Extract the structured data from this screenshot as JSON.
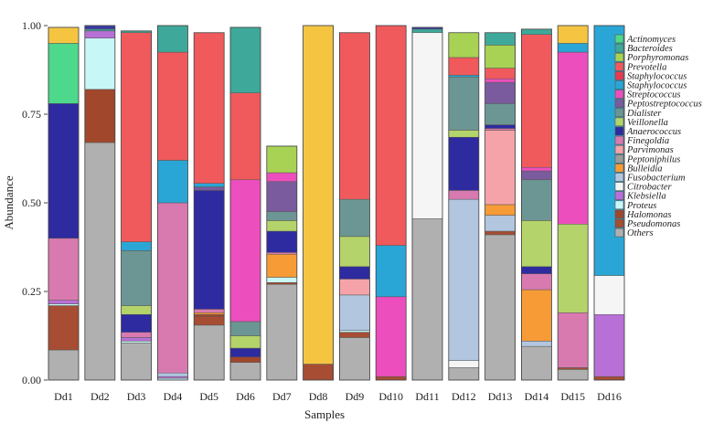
{
  "chart_data": {
    "type": "bar",
    "stacked": true,
    "xlabel": "Samples",
    "ylabel": "Abundance",
    "ylim": [
      0,
      1
    ],
    "yticks": [
      "0.00",
      "0.25",
      "0.50",
      "0.75",
      "1.00"
    ],
    "legend_position": "right",
    "categories": [
      "Dd1",
      "Dd2",
      "Dd3",
      "Dd4",
      "Dd5",
      "Dd6",
      "Dd7",
      "Dd8",
      "Dd9",
      "Dd10",
      "Dd11",
      "Dd12",
      "Dd13",
      "Dd14",
      "Dd15",
      "Dd16"
    ],
    "series": [
      {
        "name": "Others",
        "color": "#b0b0b0",
        "values": [
          0.085,
          0.67,
          0.105,
          0.0,
          0.155,
          0.05,
          0.27,
          0.0,
          0.12,
          0.0,
          0.455,
          0.035,
          0.41,
          0.095,
          0.03,
          0.0
        ]
      },
      {
        "name": "Pseudomonas",
        "color": "#a64d33",
        "values": [
          0.125,
          0.0,
          0.0,
          0.0,
          0.025,
          0.0,
          0.0,
          0.045,
          0.015,
          0.01,
          0.0,
          0.0,
          0.01,
          0.0,
          0.005,
          0.01
        ]
      },
      {
        "name": "Halomonas",
        "color": "#a0472c",
        "values": [
          0.0,
          0.15,
          0.0,
          0.0,
          0.005,
          0.015,
          0.005,
          0.0,
          0.0,
          0.0,
          0.0,
          0.0,
          0.0,
          0.0,
          0.0,
          0.0
        ]
      },
      {
        "name": "Proteus",
        "color": "#c8f7f7",
        "values": [
          0.005,
          0.145,
          0.005,
          0.005,
          0.0,
          0.0,
          0.015,
          0.0,
          0.005,
          0.0,
          0.0,
          0.0,
          0.0,
          0.0,
          0.0,
          0.0
        ]
      },
      {
        "name": "Klebsiella",
        "color": "#b86fd6",
        "values": [
          0.01,
          0.02,
          0.01,
          0.005,
          0.0,
          0.0,
          0.0,
          0.0,
          0.0,
          0.0,
          0.0,
          0.0,
          0.0,
          0.0,
          0.0,
          0.175
        ]
      },
      {
        "name": "Citrobacter",
        "color": "#f5f5f5",
        "values": [
          0.0,
          0.0,
          0.0,
          0.0,
          0.0,
          0.0,
          0.0,
          0.0,
          0.0,
          0.0,
          0.525,
          0.02,
          0.0,
          0.0,
          0.0,
          0.11
        ]
      },
      {
        "name": "Fusobacterium",
        "color": "#b3c6e0",
        "values": [
          0.0,
          0.0,
          0.0,
          0.01,
          0.0,
          0.0,
          0.0,
          0.0,
          0.1,
          0.0,
          0.0,
          0.455,
          0.045,
          0.015,
          0.0,
          0.0
        ]
      },
      {
        "name": "Bulleidia",
        "color": "#f79b37",
        "values": [
          0.0,
          0.0,
          0.0,
          0.0,
          0.005,
          0.0,
          0.065,
          0.0,
          0.0,
          0.0,
          0.0,
          0.0,
          0.03,
          0.145,
          0.0,
          0.0
        ]
      },
      {
        "name": "Peptoniphilus",
        "color": "#9b9b9b",
        "values": [
          0.0,
          0.0,
          0.0,
          0.0,
          0.0,
          0.0,
          0.0,
          0.0,
          0.0,
          0.0,
          0.0,
          0.0,
          0.0,
          0.0,
          0.0,
          0.0
        ]
      },
      {
        "name": "Parvimonas",
        "color": "#f5a3a8",
        "values": [
          0.0,
          0.0,
          0.0,
          0.0,
          0.0,
          0.0,
          0.0,
          0.0,
          0.045,
          0.0,
          0.0,
          0.0,
          0.21,
          0.0,
          0.0,
          0.0
        ]
      },
      {
        "name": "Finegoldia",
        "color": "#d87ab0",
        "values": [
          0.175,
          0.0,
          0.015,
          0.48,
          0.01,
          0.0,
          0.005,
          0.0,
          0.0,
          0.0,
          0.0,
          0.025,
          0.005,
          0.045,
          0.155,
          0.0
        ]
      },
      {
        "name": "Anaerococcus",
        "color": "#2e2a9f",
        "values": [
          0.38,
          0.0,
          0.05,
          0.0,
          0.335,
          0.025,
          0.06,
          0.0,
          0.035,
          0.0,
          0.0,
          0.15,
          0.01,
          0.02,
          0.0,
          0.0
        ]
      },
      {
        "name": "Veillonella",
        "color": "#b4d36b",
        "values": [
          0.0,
          0.0,
          0.025,
          0.0,
          0.0,
          0.035,
          0.03,
          0.0,
          0.085,
          0.0,
          0.0,
          0.02,
          0.0,
          0.13,
          0.25,
          0.0
        ]
      },
      {
        "name": "Dialister",
        "color": "#6c9694",
        "values": [
          0.0,
          0.0,
          0.155,
          0.0,
          0.0,
          0.04,
          0.025,
          0.0,
          0.105,
          0.0,
          0.0,
          0.15,
          0.06,
          0.115,
          0.0,
          0.0
        ]
      },
      {
        "name": "Peptostreptococcus",
        "color": "#7a5b9e",
        "values": [
          0.0,
          0.0,
          0.0,
          0.0,
          0.01,
          0.0,
          0.085,
          0.0,
          0.0,
          0.0,
          0.0,
          0.0,
          0.06,
          0.025,
          0.0,
          0.0
        ]
      },
      {
        "name": "Streptococcus",
        "color": "#ec4fbd",
        "values": [
          0.0,
          0.0,
          0.0,
          0.0,
          0.0,
          0.4,
          0.025,
          0.0,
          0.0,
          0.225,
          0.0,
          0.0,
          0.01,
          0.01,
          0.485,
          0.0
        ]
      },
      {
        "name": "Staphylococcus",
        "color": "#2aa6d6",
        "values": [
          0.0,
          0.0,
          0.025,
          0.12,
          0.01,
          0.0,
          0.0,
          0.0,
          0.0,
          0.145,
          0.0,
          0.005,
          0.0,
          0.0,
          0.025,
          0.705
        ]
      },
      {
        "name": "Staphylococcus",
        "color": "#e83a4e",
        "values": [
          0.0,
          0.0,
          0.0,
          0.0,
          0.0,
          0.0,
          0.0,
          0.0,
          0.0,
          0.0,
          0.0,
          0.0,
          0.0,
          0.0,
          0.0,
          0.0
        ]
      },
      {
        "name": "Prevotella",
        "color": "#f05a5c",
        "values": [
          0.0,
          0.0,
          0.59,
          0.305,
          0.425,
          0.245,
          0.0,
          0.0,
          0.47,
          0.62,
          0.0,
          0.05,
          0.03,
          0.375,
          0.0,
          0.0
        ]
      },
      {
        "name": "Porphyromonas",
        "color": "#a8d254",
        "values": [
          0.0,
          0.0,
          0.0,
          0.0,
          0.0,
          0.0,
          0.075,
          0.0,
          0.0,
          0.0,
          0.0,
          0.07,
          0.065,
          0.0,
          0.0,
          0.0
        ]
      },
      {
        "name": "Bacteroides",
        "color": "#3ea99a",
        "values": [
          0.0,
          0.005,
          0.005,
          0.075,
          0.0,
          0.185,
          0.0,
          0.0,
          0.0,
          0.0,
          0.01,
          0.0,
          0.035,
          0.015,
          0.0,
          0.0
        ]
      },
      {
        "name": "Actinomyces",
        "color": "#4dd88b",
        "values": [
          0.17,
          0.0,
          0.0,
          0.0,
          0.0,
          0.0,
          0.0,
          0.0,
          0.0,
          0.0,
          0.0,
          0.0,
          0.0,
          0.0,
          0.0,
          0.0
        ]
      },
      {
        "name": "",
        "color": "#f5c542",
        "values": [
          0.045,
          0.0,
          0.0,
          0.0,
          0.0,
          0.0,
          0.0,
          0.955,
          0.0,
          0.0,
          0.0,
          0.0,
          0.0,
          0.0,
          0.05,
          0.0
        ]
      },
      {
        "name": "",
        "color": "#3b3ba8",
        "values": [
          0.0,
          0.01,
          0.0,
          0.0,
          0.0,
          0.0,
          0.0,
          0.0,
          0.0,
          0.0,
          0.005,
          0.0,
          0.0,
          0.0,
          0.0,
          0.0
        ]
      }
    ],
    "legend": [
      {
        "label": "Actinomyces",
        "color": "#4dd88b"
      },
      {
        "label": "Bacteroides",
        "color": "#3ea99a"
      },
      {
        "label": "Porphyromonas",
        "color": "#a8d254"
      },
      {
        "label": "Prevotella",
        "color": "#f05a5c"
      },
      {
        "label": "Staphylococcus",
        "color": "#e83a4e"
      },
      {
        "label": "Staphylococcus",
        "color": "#2aa6d6"
      },
      {
        "label": "Streptococcus",
        "color": "#ec4fbd"
      },
      {
        "label": "Peptostreptococcus",
        "color": "#7a5b9e"
      },
      {
        "label": "Dialister",
        "color": "#6c9694"
      },
      {
        "label": "Veillonella",
        "color": "#b4d36b"
      },
      {
        "label": "Anaerococcus",
        "color": "#2e2a9f"
      },
      {
        "label": "Finegoldia",
        "color": "#d87ab0"
      },
      {
        "label": "Parvimonas",
        "color": "#f5a3a8"
      },
      {
        "label": "Peptoniphilus",
        "color": "#9b9b9b"
      },
      {
        "label": "Bulleidia",
        "color": "#f79b37"
      },
      {
        "label": "Fusobacterium",
        "color": "#b3c6e0"
      },
      {
        "label": "Citrobacter",
        "color": "#f5f5f5"
      },
      {
        "label": "Klebsiella",
        "color": "#b86fd6"
      },
      {
        "label": "Proteus",
        "color": "#c8f7f7"
      },
      {
        "label": "Halomonas",
        "color": "#a0472c"
      },
      {
        "label": "Pseudomonas",
        "color": "#a64d33"
      },
      {
        "label": "Others",
        "color": "#b0b0b0"
      }
    ]
  }
}
